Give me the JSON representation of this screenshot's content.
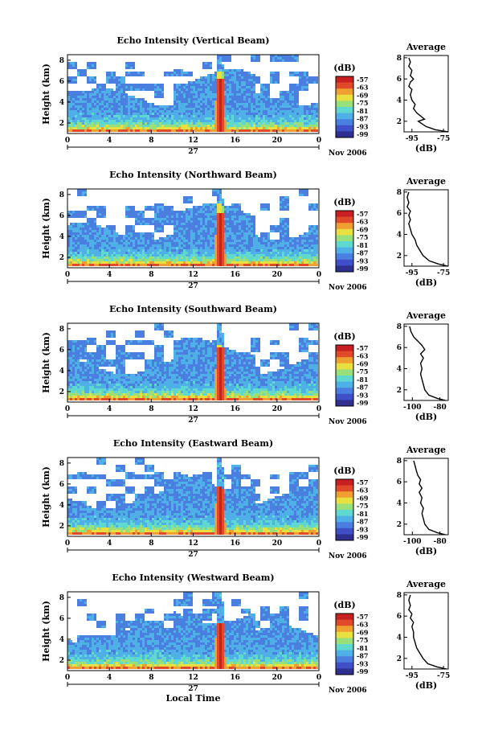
{
  "chart_data": [
    {
      "type": "heatmap",
      "title": "Echo Intensity (Vertical Beam)",
      "ylabel": "Height (km)",
      "xticks": [
        "0",
        "4",
        "8",
        "12",
        "16",
        "20",
        "0"
      ],
      "yticks": [
        "2",
        "4",
        "6",
        "8"
      ],
      "date_day": "27",
      "date_month": "Nov 2006",
      "colorbar_unit": "(dB)",
      "colorbar_ticks": [
        "-57",
        "-63",
        "-69",
        "-75",
        "-81",
        "-87",
        "-93",
        "-99"
      ],
      "profile": {
        "title": "Average",
        "xticks": [
          "-95",
          "-75"
        ],
        "xlabel": "(dB)",
        "yticks": [
          "2",
          "4",
          "6",
          "8"
        ],
        "xlim": [
          -100,
          -72
        ],
        "points": [
          [
            -72,
            1.0
          ],
          [
            -80,
            1.2
          ],
          [
            -86,
            1.5
          ],
          [
            -91,
            2.0
          ],
          [
            -87,
            2.2
          ],
          [
            -92,
            2.8
          ],
          [
            -94,
            3.2
          ],
          [
            -93,
            3.6
          ],
          [
            -95,
            4.0
          ],
          [
            -96,
            4.5
          ],
          [
            -95,
            5.0
          ],
          [
            -97,
            5.3
          ],
          [
            -96,
            5.7
          ],
          [
            -94,
            6.0
          ],
          [
            -96,
            6.3
          ],
          [
            -95,
            6.8
          ],
          [
            -97,
            7.2
          ],
          [
            -96,
            7.6
          ],
          [
            -97,
            8.0
          ]
        ]
      }
    },
    {
      "type": "heatmap",
      "title": "Echo Intensity (Northward Beam)",
      "ylabel": "Height (km)",
      "xticks": [
        "0",
        "4",
        "8",
        "12",
        "16",
        "20",
        "0"
      ],
      "yticks": [
        "2",
        "4",
        "6",
        "8"
      ],
      "date_day": "27",
      "date_month": "Nov 2006",
      "colorbar_unit": "(dB)",
      "colorbar_ticks": [
        "-57",
        "-63",
        "-69",
        "-75",
        "-81",
        "-87",
        "-93",
        "-99"
      ],
      "profile": {
        "title": "Average",
        "xticks": [
          "-95",
          "-75"
        ],
        "xlabel": "(dB)",
        "yticks": [
          "2",
          "4",
          "6",
          "8"
        ],
        "xlim": [
          -100,
          -72
        ],
        "points": [
          [
            -72,
            1.0
          ],
          [
            -78,
            1.2
          ],
          [
            -84,
            1.5
          ],
          [
            -88,
            2.0
          ],
          [
            -90,
            2.5
          ],
          [
            -92,
            3.0
          ],
          [
            -93,
            3.5
          ],
          [
            -95,
            4.0
          ],
          [
            -96,
            4.5
          ],
          [
            -97,
            5.0
          ],
          [
            -96,
            5.4
          ],
          [
            -97,
            5.8
          ],
          [
            -96,
            6.2
          ],
          [
            -98,
            6.6
          ],
          [
            -97,
            7.0
          ],
          [
            -98,
            7.5
          ],
          [
            -97,
            8.0
          ]
        ]
      }
    },
    {
      "type": "heatmap",
      "title": "Echo Intensity (Southward Beam)",
      "ylabel": "Height (km)",
      "xticks": [
        "0",
        "4",
        "8",
        "12",
        "16",
        "20",
        "0"
      ],
      "yticks": [
        "2",
        "4",
        "6",
        "8"
      ],
      "date_day": "27",
      "date_month": "Nov 2006",
      "colorbar_unit": "(dB)",
      "colorbar_ticks": [
        "-57",
        "-63",
        "-69",
        "-75",
        "-81",
        "-87",
        "-93",
        "-99"
      ],
      "profile": {
        "title": "Average",
        "xticks": [
          "-100",
          "-80"
        ],
        "xlabel": "(dB)",
        "yticks": [
          "2",
          "4",
          "6",
          "8"
        ],
        "xlim": [
          -106,
          -74
        ],
        "points": [
          [
            -76,
            1.0
          ],
          [
            -82,
            1.2
          ],
          [
            -88,
            1.5
          ],
          [
            -91,
            2.0
          ],
          [
            -92,
            2.5
          ],
          [
            -93,
            3.0
          ],
          [
            -94,
            3.5
          ],
          [
            -93,
            4.0
          ],
          [
            -94,
            4.5
          ],
          [
            -92,
            5.0
          ],
          [
            -94,
            5.4
          ],
          [
            -91,
            5.8
          ],
          [
            -93,
            6.2
          ],
          [
            -96,
            6.6
          ],
          [
            -99,
            7.0
          ],
          [
            -101,
            7.5
          ],
          [
            -102,
            8.0
          ]
        ]
      }
    },
    {
      "type": "heatmap",
      "title": "Echo Intensity (Eastward Beam)",
      "ylabel": "Height (km)",
      "xticks": [
        "0",
        "4",
        "8",
        "12",
        "16",
        "20",
        "0"
      ],
      "yticks": [
        "2",
        "4",
        "6",
        "8"
      ],
      "date_day": "27",
      "date_month": "Nov 2006",
      "colorbar_unit": "(dB)",
      "colorbar_ticks": [
        "-57",
        "-63",
        "-69",
        "-75",
        "-81",
        "-87",
        "-93",
        "-99"
      ],
      "profile": {
        "title": "Average",
        "xticks": [
          "-100",
          "-80"
        ],
        "xlabel": "(dB)",
        "yticks": [
          "2",
          "4",
          "6",
          "8"
        ],
        "xlim": [
          -106,
          -74
        ],
        "points": [
          [
            -76,
            1.0
          ],
          [
            -82,
            1.2
          ],
          [
            -88,
            1.5
          ],
          [
            -91,
            2.0
          ],
          [
            -92,
            2.5
          ],
          [
            -93,
            3.0
          ],
          [
            -92,
            3.5
          ],
          [
            -94,
            4.0
          ],
          [
            -93,
            4.5
          ],
          [
            -95,
            5.0
          ],
          [
            -93,
            5.4
          ],
          [
            -95,
            5.8
          ],
          [
            -94,
            6.2
          ],
          [
            -96,
            6.6
          ],
          [
            -97,
            7.0
          ],
          [
            -98,
            7.5
          ],
          [
            -99,
            8.0
          ]
        ]
      }
    },
    {
      "type": "heatmap",
      "title": "Echo Intensity (Westward Beam)",
      "ylabel": "Height (km)",
      "xticks": [
        "0",
        "4",
        "8",
        "12",
        "16",
        "20",
        "0"
      ],
      "yticks": [
        "2",
        "4",
        "6",
        "8"
      ],
      "date_day": "27",
      "date_month": "Nov 2006",
      "xlabel": "Local Time",
      "colorbar_unit": "(dB)",
      "colorbar_ticks": [
        "-57",
        "-63",
        "-69",
        "-75",
        "-81",
        "-87",
        "-93",
        "-99"
      ],
      "profile": {
        "title": "Average",
        "xticks": [
          "-95",
          "-75"
        ],
        "xlabel": "(dB)",
        "yticks": [
          "2",
          "4",
          "6",
          "8"
        ],
        "xlim": [
          -100,
          -72
        ],
        "points": [
          [
            -73,
            1.0
          ],
          [
            -79,
            1.2
          ],
          [
            -85,
            1.5
          ],
          [
            -88,
            2.0
          ],
          [
            -90,
            2.5
          ],
          [
            -92,
            3.0
          ],
          [
            -93,
            3.5
          ],
          [
            -94,
            4.0
          ],
          [
            -94,
            4.5
          ],
          [
            -95,
            5.0
          ],
          [
            -94,
            5.4
          ],
          [
            -96,
            5.8
          ],
          [
            -95,
            6.2
          ],
          [
            -97,
            6.6
          ],
          [
            -96,
            7.0
          ],
          [
            -97,
            7.5
          ],
          [
            -96,
            8.0
          ]
        ]
      }
    }
  ],
  "colors": {
    "scale": [
      "#2f2f8f",
      "#3f4fc8",
      "#4a7fe0",
      "#4fb0e8",
      "#5fd8d0",
      "#9ae07a",
      "#e8e040",
      "#f0a030",
      "#e04a2a",
      "#c82020"
    ]
  }
}
